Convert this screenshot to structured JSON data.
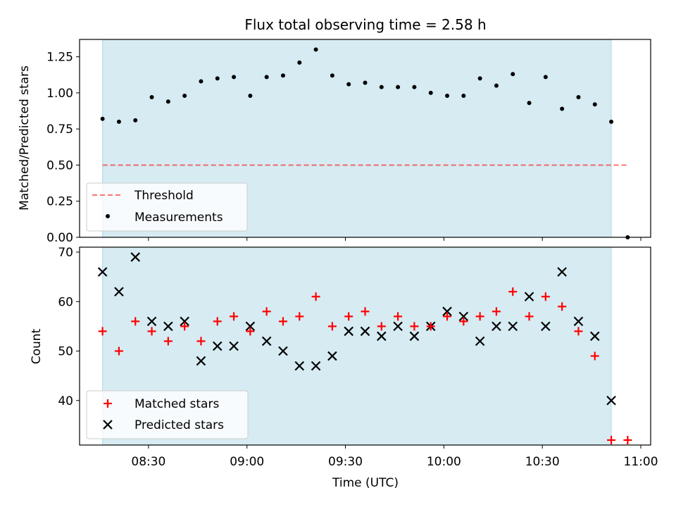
{
  "title": "Flux total observing time = 2.58 h",
  "colors": {
    "shade": "#add8e6",
    "threshold": "#ff0000",
    "measurements": "#000000",
    "matched": "#ff0000",
    "predicted": "#000000"
  },
  "chart_data": [
    {
      "type": "scatter",
      "ylabel": "Matched/Predicted stars",
      "xlabel": "",
      "ylim": [
        0,
        1.37
      ],
      "yticks": [
        "0.00",
        "0.25",
        "0.50",
        "0.75",
        "1.00",
        "1.25"
      ],
      "shaded_interval": [
        "08:16",
        "10:51"
      ],
      "threshold": {
        "name": "Threshold",
        "y": 0.5,
        "x_range": [
          "08:16",
          "10:56"
        ]
      },
      "series": [
        {
          "name": "Measurements",
          "x": [
            "08:16",
            "08:21",
            "08:26",
            "08:31",
            "08:36",
            "08:41",
            "08:46",
            "08:51",
            "08:56",
            "09:01",
            "09:06",
            "09:11",
            "09:16",
            "09:21",
            "09:26",
            "09:31",
            "09:36",
            "09:41",
            "09:46",
            "09:51",
            "09:56",
            "10:01",
            "10:06",
            "10:11",
            "10:16",
            "10:21",
            "10:26",
            "10:31",
            "10:36",
            "10:41",
            "10:46",
            "10:51",
            "10:56"
          ],
          "y": [
            0.82,
            0.8,
            0.81,
            0.97,
            0.94,
            0.98,
            1.08,
            1.1,
            1.11,
            0.98,
            1.11,
            1.12,
            1.21,
            1.3,
            1.12,
            1.06,
            1.07,
            1.04,
            1.04,
            1.04,
            1.0,
            0.98,
            0.98,
            1.1,
            1.05,
            1.13,
            0.93,
            1.11,
            0.89,
            0.97,
            0.92,
            0.8,
            0.0
          ]
        }
      ]
    },
    {
      "type": "scatter",
      "ylabel": "Count",
      "xlabel": "Time (UTC)",
      "ylim": [
        31,
        71
      ],
      "yticks": [
        "40",
        "50",
        "60",
        "70"
      ],
      "xlim": [
        "08:09",
        "11:03"
      ],
      "xticks": [
        "08:30",
        "09:00",
        "09:30",
        "10:00",
        "10:30",
        "11:00"
      ],
      "shaded_interval": [
        "08:16",
        "10:51"
      ],
      "series": [
        {
          "name": "Matched stars",
          "x": [
            "08:16",
            "08:21",
            "08:26",
            "08:31",
            "08:36",
            "08:41",
            "08:46",
            "08:51",
            "08:56",
            "09:01",
            "09:06",
            "09:11",
            "09:16",
            "09:21",
            "09:26",
            "09:31",
            "09:36",
            "09:41",
            "09:46",
            "09:51",
            "09:56",
            "10:01",
            "10:06",
            "10:11",
            "10:16",
            "10:21",
            "10:26",
            "10:31",
            "10:36",
            "10:41",
            "10:46",
            "10:51",
            "10:56"
          ],
          "y": [
            54,
            50,
            56,
            54,
            52,
            55,
            52,
            56,
            57,
            54,
            58,
            56,
            57,
            61,
            55,
            57,
            58,
            55,
            57,
            55,
            55,
            57,
            56,
            57,
            58,
            62,
            57,
            61,
            59,
            54,
            49,
            32,
            32
          ]
        },
        {
          "name": "Predicted stars",
          "x": [
            "08:16",
            "08:21",
            "08:26",
            "08:31",
            "08:36",
            "08:41",
            "08:46",
            "08:51",
            "08:56",
            "09:01",
            "09:06",
            "09:11",
            "09:16",
            "09:21",
            "09:26",
            "09:31",
            "09:36",
            "09:41",
            "09:46",
            "09:51",
            "09:56",
            "10:01",
            "10:06",
            "10:11",
            "10:16",
            "10:21",
            "10:26",
            "10:31",
            "10:36",
            "10:41",
            "10:46",
            "10:51"
          ],
          "y": [
            66,
            62,
            69,
            56,
            55,
            56,
            48,
            51,
            51,
            55,
            52,
            50,
            47,
            47,
            49,
            54,
            54,
            53,
            55,
            53,
            55,
            58,
            57,
            52,
            55,
            55,
            61,
            55,
            66,
            56,
            53,
            40
          ]
        }
      ]
    }
  ]
}
